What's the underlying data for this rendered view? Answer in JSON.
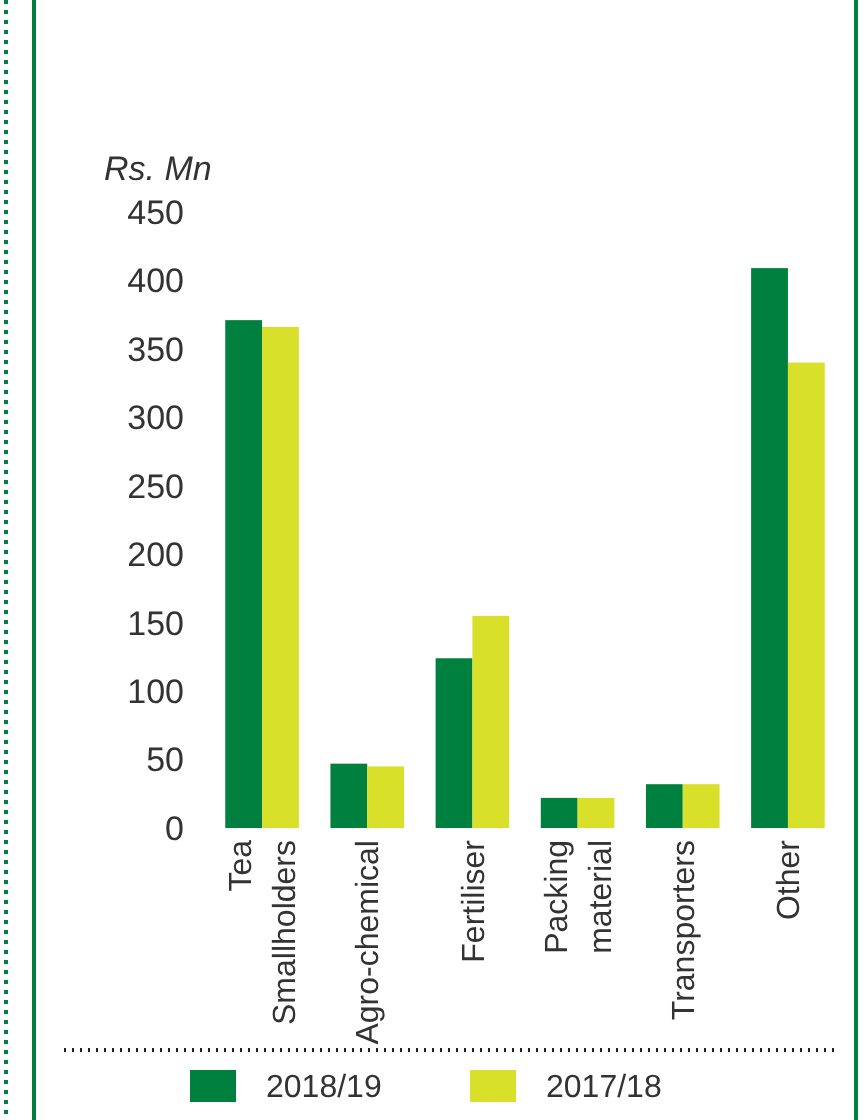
{
  "chart_data": {
    "type": "bar",
    "ylabel": "Rs. Mn",
    "categories": [
      "Tea\nSmallholders",
      "Agro-chemical",
      "Fertiliser",
      "Packing\nmaterial",
      "Transporters",
      "Other"
    ],
    "series": [
      {
        "name": "2018/19",
        "color": "#00803f",
        "values": [
          371,
          47,
          124,
          22,
          32,
          409
        ]
      },
      {
        "name": "2017/18",
        "color": "#d8e02a",
        "values": [
          366,
          45,
          155,
          22,
          32,
          340
        ]
      }
    ],
    "ylim": [
      0,
      450
    ],
    "yticks": [
      0,
      50,
      100,
      150,
      200,
      250,
      300,
      350,
      400,
      450
    ],
    "grid": false,
    "legend": "bottom"
  }
}
